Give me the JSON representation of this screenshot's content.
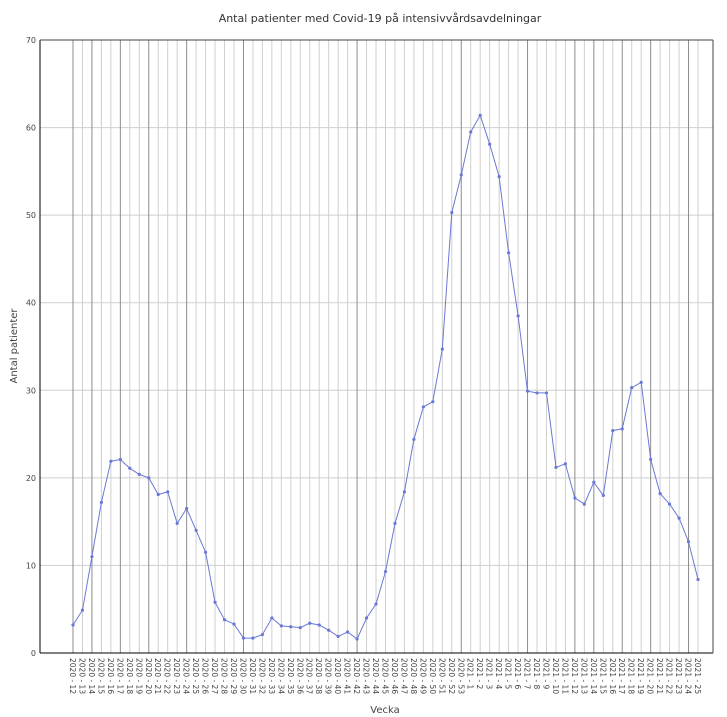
{
  "chart_data": {
    "type": "line",
    "title": "Antal patienter med Covid-19 på intensivvårdsavdelningar",
    "xlabel": "Vecka",
    "ylabel": "Antal patienter",
    "ylim": [
      0,
      70
    ],
    "yticks": [
      0,
      10,
      20,
      30,
      40,
      50,
      60,
      70
    ],
    "grid": true,
    "legend": "none",
    "colors": {
      "line": "#6a78d6",
      "grid": "#cfcfcf",
      "grid_major": "#8c8c8c",
      "axis": "#000000"
    },
    "categories": [
      "2020 - 12",
      "2020 - 13",
      "2020 - 14",
      "2020 - 15",
      "2020 - 16",
      "2020 - 17",
      "2020 - 18",
      "2020 - 19",
      "2020 - 20",
      "2020 - 21",
      "2020 - 22",
      "2020 - 23",
      "2020 - 24",
      "2020 - 25",
      "2020 - 26",
      "2020 - 27",
      "2020 - 28",
      "2020 - 29",
      "2020 - 30",
      "2020 - 31",
      "2020 - 32",
      "2020 - 33",
      "2020 - 34",
      "2020 - 35",
      "2020 - 36",
      "2020 - 37",
      "2020 - 38",
      "2020 - 39",
      "2020 - 40",
      "2020 - 41",
      "2020 - 42",
      "2020 - 43",
      "2020 - 44",
      "2020 - 45",
      "2020 - 46",
      "2020 - 47",
      "2020 - 48",
      "2020 - 49",
      "2020 - 50",
      "2020 - 51",
      "2020 - 52",
      "2020 - 53",
      "2021 - 1",
      "2021 - 2",
      "2021 - 3",
      "2021 - 4",
      "2021 - 5",
      "2021 - 6",
      "2021 - 7",
      "2021 - 8",
      "2021 - 9",
      "2021 - 10",
      "2021 - 11",
      "2021 - 12",
      "2021 - 13",
      "2021 - 14",
      "2021 - 15",
      "2021 - 16",
      "2021 - 17",
      "2021 - 18",
      "2021 - 19",
      "2021 - 20",
      "2021 - 21",
      "2021 - 22",
      "2021 - 23",
      "2021 - 24",
      "2021 - 25"
    ],
    "values": [
      3.2,
      4.9,
      11.0,
      17.2,
      21.9,
      22.1,
      21.1,
      20.4,
      20.0,
      18.1,
      18.4,
      14.8,
      16.5,
      14.0,
      11.5,
      5.8,
      3.8,
      3.3,
      1.7,
      1.7,
      2.1,
      4.0,
      3.1,
      3.0,
      2.9,
      3.4,
      3.2,
      2.6,
      1.9,
      2.4,
      1.6,
      4.0,
      5.6,
      9.3,
      14.8,
      18.4,
      24.4,
      28.1,
      28.7,
      34.7,
      50.3,
      54.6,
      59.5,
      61.4,
      58.1,
      54.4,
      45.7,
      38.5,
      29.9,
      29.7,
      29.7,
      21.2,
      21.6,
      17.7,
      17.0,
      19.5,
      18.0,
      25.4,
      25.6,
      30.3,
      30.9,
      22.1,
      18.2,
      17.0,
      15.4,
      12.7,
      8.4
    ]
  }
}
